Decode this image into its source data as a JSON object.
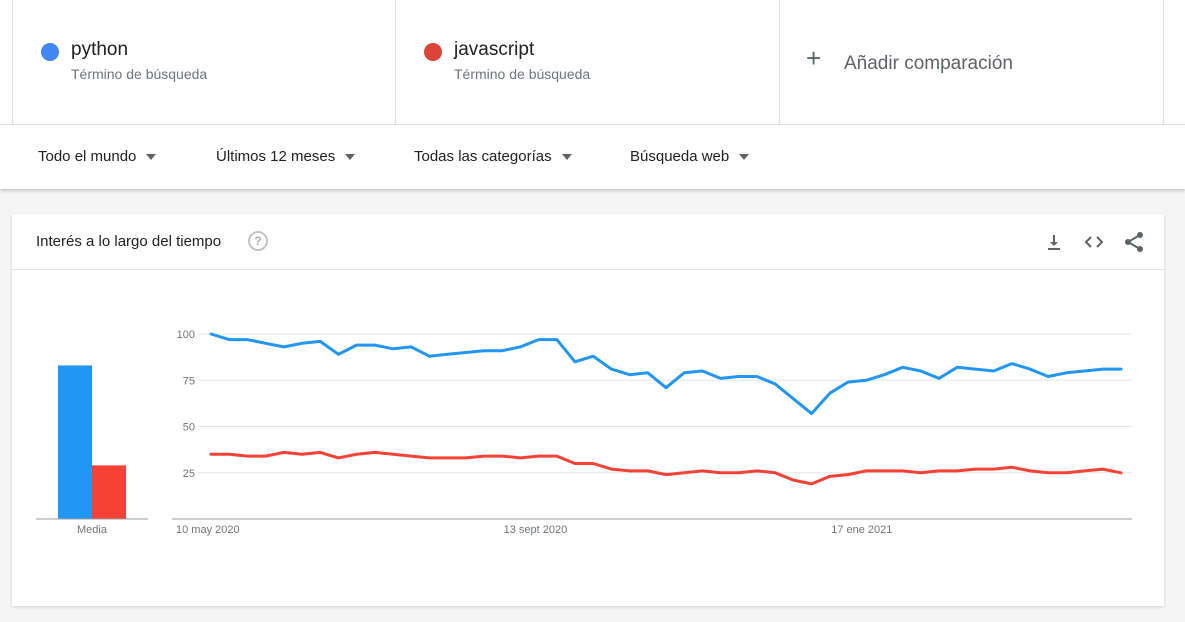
{
  "terms": [
    {
      "name": "python",
      "subtitle": "Término de búsqueda",
      "color": "#4285f4"
    },
    {
      "name": "javascript",
      "subtitle": "Término de búsqueda",
      "color": "#db4437"
    }
  ],
  "add_comparison": {
    "label": "Añadir comparación"
  },
  "filters": {
    "region": "Todo el mundo",
    "period": "Últimos 12 meses",
    "category": "Todas las categorías",
    "search_type": "Búsqueda web"
  },
  "card": {
    "title": "Interés a lo largo del tiempo",
    "help_glyph": "?"
  },
  "chart_data": {
    "type": "line",
    "x_labels": [
      "10 may 2020",
      "13 sept 2020",
      "17 ene 2021"
    ],
    "x_label_indices": [
      0,
      18,
      36
    ],
    "yticks": [
      25,
      50,
      75,
      100
    ],
    "ylim": [
      0,
      100
    ],
    "grid": true,
    "series": [
      {
        "name": "python",
        "color": "#2196f3",
        "values": [
          100,
          97,
          97,
          95,
          93,
          95,
          96,
          89,
          94,
          94,
          92,
          93,
          88,
          89,
          90,
          91,
          91,
          93,
          97,
          97,
          85,
          88,
          81,
          78,
          79,
          71,
          79,
          80,
          76,
          77,
          77,
          73,
          65,
          57,
          68,
          74,
          75,
          78,
          82,
          80,
          76,
          82,
          81,
          80,
          84,
          81,
          77,
          79,
          80,
          81,
          81
        ]
      },
      {
        "name": "javascript",
        "color": "#f44336",
        "values": [
          35,
          35,
          34,
          34,
          36,
          35,
          36,
          33,
          35,
          36,
          35,
          34,
          33,
          33,
          33,
          34,
          34,
          33,
          34,
          34,
          30,
          30,
          27,
          26,
          26,
          24,
          25,
          26,
          25,
          25,
          26,
          25,
          21,
          19,
          23,
          24,
          26,
          26,
          26,
          25,
          26,
          26,
          27,
          27,
          28,
          26,
          25,
          25,
          26,
          27,
          25
        ]
      }
    ],
    "average": {
      "label": "Media",
      "values": [
        83,
        29
      ]
    }
  }
}
